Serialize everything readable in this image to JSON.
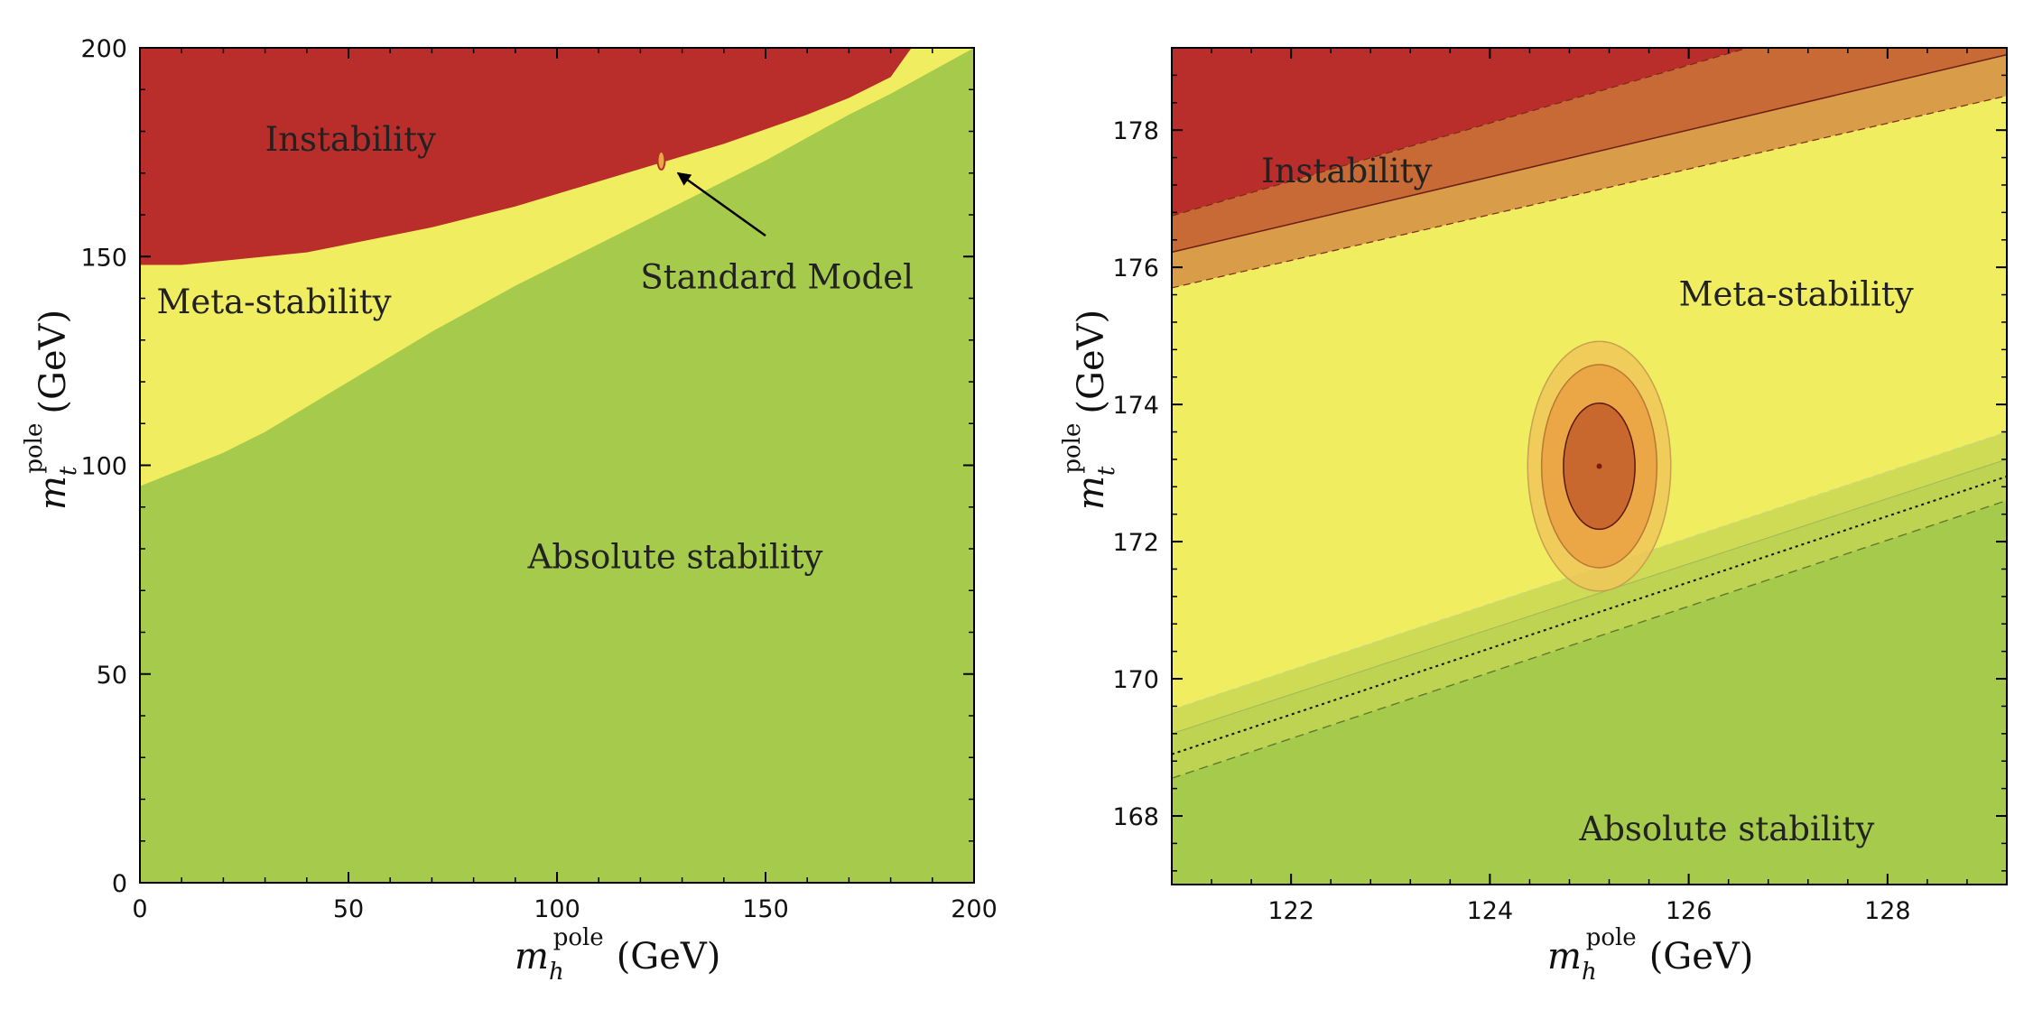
{
  "colors": {
    "instability": "#b92e2a",
    "meta_stability": "#f0ee60",
    "absolute_stability": "#a6ca4b",
    "band_dark_orange": "#c86a35",
    "band_orange": "#d99c48",
    "ellipse_inner": "#c8682f",
    "ellipse_mid": "#eba646",
    "ellipse_outer": "#f0c55a",
    "green_band_light": "#cfdb55",
    "green_band_mid": "#bdd351"
  },
  "axis_labels": {
    "x_var": "m",
    "x_sub": "h",
    "x_sup": "pole",
    "x_unit": "(GeV)",
    "y_var": "m",
    "y_sub": "t",
    "y_sup": "pole",
    "y_unit": "(GeV)"
  },
  "chart_data": [
    {
      "type": "area",
      "xlim": [
        0,
        200
      ],
      "ylim": [
        0,
        200
      ],
      "xticks": [
        0,
        50,
        100,
        150,
        200
      ],
      "yticks": [
        0,
        50,
        100,
        150,
        200
      ],
      "xtick_labels": [
        "0",
        "50",
        "100",
        "150",
        "200"
      ],
      "ytick_labels": [
        "0",
        "50",
        "100",
        "150",
        "200"
      ],
      "regions": [
        {
          "name": "Instability",
          "label": "Instability",
          "label_at": [
            30,
            178
          ]
        },
        {
          "name": "Meta-stability",
          "label": "Meta-stability",
          "label_at": [
            4,
            139
          ]
        },
        {
          "name": "Absolute stability",
          "label": "Absolute stability",
          "label_at": [
            93,
            78
          ]
        }
      ],
      "instability_boundary": {
        "x": [
          0,
          10,
          20,
          30,
          40,
          50,
          60,
          70,
          80,
          90,
          100,
          110,
          120,
          130,
          140,
          150,
          160,
          170,
          180,
          185
        ],
        "y": [
          148,
          148,
          149,
          150,
          151,
          153,
          155,
          157,
          159.5,
          162,
          165,
          168,
          171,
          174,
          177,
          180.5,
          184,
          188,
          193,
          200
        ]
      },
      "stability_boundary": {
        "x": [
          0,
          5,
          10,
          20,
          30,
          40,
          50,
          60,
          70,
          80,
          90,
          100,
          110,
          120,
          130,
          140,
          150,
          160,
          170,
          180,
          190,
          200
        ],
        "y": [
          95,
          97,
          99,
          103,
          108,
          114,
          120,
          126,
          132,
          137.5,
          143,
          148,
          153,
          158,
          163,
          168,
          173,
          178.5,
          184,
          189,
          194.5,
          200
        ]
      },
      "standard_model_point": {
        "x": 125,
        "y": 173
      },
      "annotation": {
        "text": "Standard Model",
        "text_at": [
          120,
          145
        ],
        "arrow_from": [
          150,
          155
        ],
        "arrow_to": [
          129,
          170
        ]
      }
    },
    {
      "type": "area",
      "xlim": [
        120.8,
        129.2
      ],
      "ylim": [
        167,
        179.2
      ],
      "xticks": [
        122,
        124,
        126,
        128
      ],
      "yticks": [
        168,
        170,
        172,
        174,
        176,
        178
      ],
      "xtick_labels": [
        "122",
        "124",
        "126",
        "128"
      ],
      "ytick_labels": [
        "168",
        "170",
        "172",
        "174",
        "176",
        "178"
      ],
      "regions": [
        {
          "name": "Instability",
          "label": "Instability",
          "label_at": [
            121.7,
            177.4
          ]
        },
        {
          "name": "Meta-stability",
          "label": "Meta-stability",
          "label_at": [
            125.9,
            175.6
          ]
        },
        {
          "name": "Absolute stability",
          "label": "Absolute stability",
          "label_at": [
            124.9,
            167.8
          ]
        }
      ],
      "instability_band": {
        "upper": {
          "x": [
            120.8,
            129.2
          ],
          "y": [
            176.75,
            180.3
          ]
        },
        "central": {
          "x": [
            120.8,
            129.2
          ],
          "y": [
            176.22,
            179.1
          ]
        },
        "lower": {
          "x": [
            120.8,
            129.2
          ],
          "y": [
            175.7,
            178.5
          ]
        }
      },
      "stability_band": {
        "upper": {
          "x": [
            120.8,
            129.2
          ],
          "y": [
            169.55,
            173.6
          ]
        },
        "mid": {
          "x": [
            120.8,
            129.2
          ],
          "y": [
            169.2,
            173.2
          ]
        },
        "dotted": {
          "x": [
            120.8,
            129.2
          ],
          "y": [
            168.9,
            172.95
          ]
        },
        "lower": {
          "x": [
            120.8,
            129.2
          ],
          "y": [
            168.55,
            172.6
          ]
        }
      },
      "standard_model_point": {
        "x": 125.1,
        "y": 173.1
      },
      "uncertainty_ellipses": [
        {
          "level": 3,
          "center": [
            125.1,
            173.1
          ],
          "rx": 0.72,
          "ry": 1.82
        },
        {
          "level": 2,
          "center": [
            125.1,
            173.1
          ],
          "rx": 0.58,
          "ry": 1.48
        },
        {
          "level": 1,
          "center": [
            125.1,
            173.1
          ],
          "rx": 0.36,
          "ry": 0.92
        }
      ]
    }
  ]
}
